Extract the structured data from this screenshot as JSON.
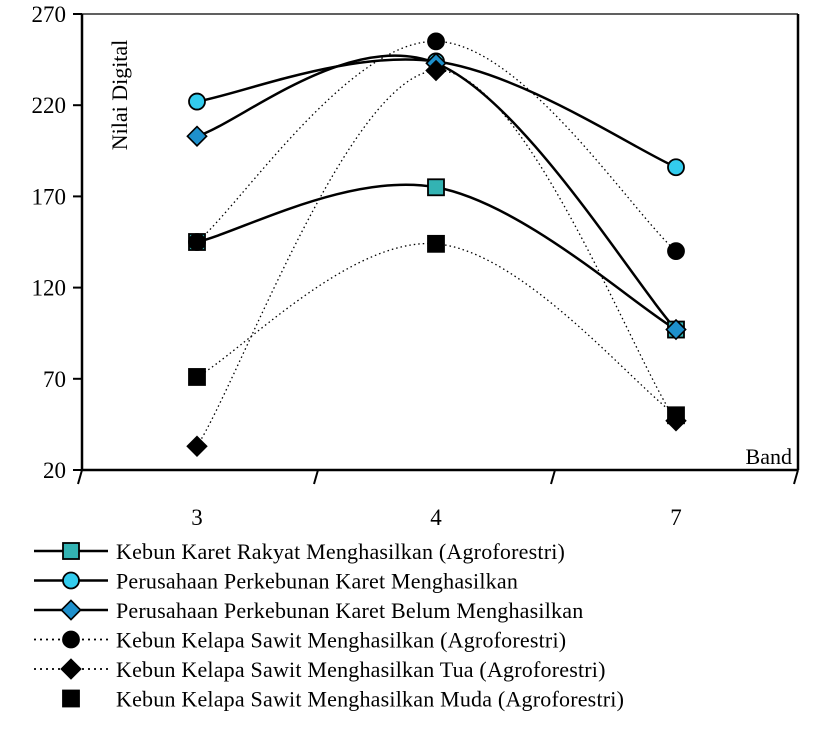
{
  "chart_data": {
    "type": "line",
    "title": "",
    "xlabel": "Band",
    "ylabel": "Nilai Digital",
    "categories": [
      "3",
      "4",
      "7"
    ],
    "ylim": [
      20,
      270
    ],
    "yticks": [
      "20",
      "70",
      "120",
      "170",
      "220",
      "270"
    ],
    "grid": false,
    "legend_position": "bottom",
    "series": [
      {
        "name": "Kebun Karet Rakyat Menghasilkan (Agroforestri)",
        "values": [
          145,
          175,
          97
        ],
        "marker": "square",
        "marker_color": "#33b3b3",
        "line": "solid",
        "smooth": true
      },
      {
        "name": "Perusahaan Perkebunan Karet Menghasilkan",
        "values": [
          222,
          244,
          186
        ],
        "marker": "circle",
        "marker_color": "#33ccee",
        "line": "solid",
        "smooth": true
      },
      {
        "name": "Perusahaan Perkebunan Karet Belum Menghasilkan",
        "values": [
          203,
          243,
          97
        ],
        "marker": "diamond",
        "marker_color": "#1e90cc",
        "line": "solid",
        "smooth": true
      },
      {
        "name": "Kebun Kelapa Sawit Menghasilkan (Agroforestri)",
        "values": [
          145,
          255,
          140
        ],
        "marker": "circle",
        "marker_color": "#000000",
        "line": "dotted",
        "smooth": true
      },
      {
        "name": "Kebun Kelapa Sawit Menghasilkan Tua (Agroforestri)",
        "values": [
          33,
          239,
          47
        ],
        "marker": "diamond",
        "marker_color": "#000000",
        "line": "dotted",
        "smooth": true
      },
      {
        "name": "Kebun Kelapa Sawit Menghasilkan Muda (Agroforestri)",
        "values": [
          71,
          144,
          50
        ],
        "marker": "square",
        "marker_color": "#000000",
        "line": "dotted",
        "smooth": true
      }
    ]
  }
}
